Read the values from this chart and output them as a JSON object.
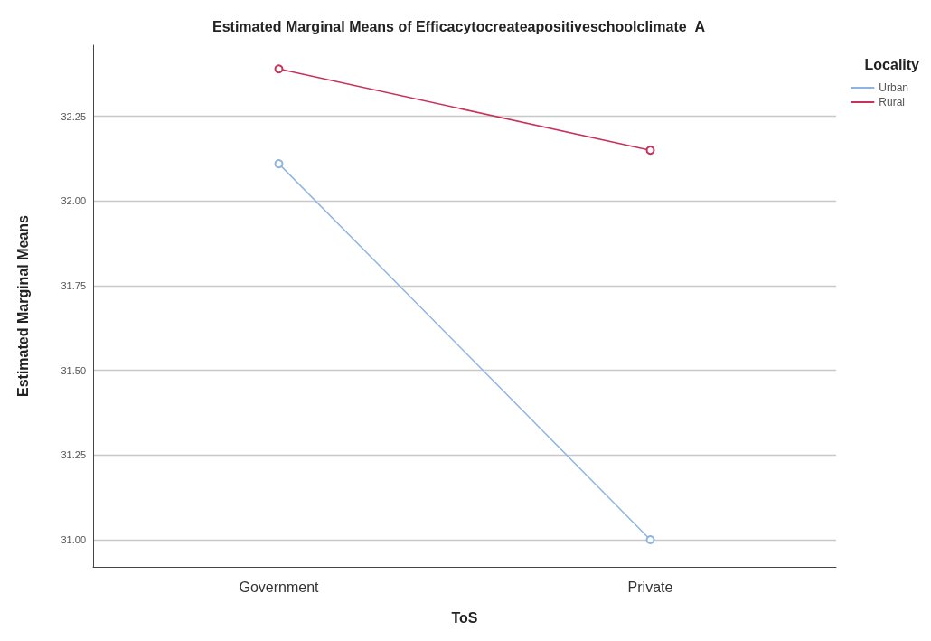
{
  "chart_data": {
    "type": "line",
    "title": "Estimated Marginal Means of Efficacytocreateapositiveschoolclimate_A",
    "xlabel": "ToS",
    "ylabel": "Estimated Marginal Means",
    "legend_title": "Locality",
    "categories": [
      "Government",
      "Private"
    ],
    "series": [
      {
        "name": "Urban",
        "color": "#8fb4e3",
        "values": [
          32.11,
          31.0
        ]
      },
      {
        "name": "Rural",
        "color": "#c8325a",
        "values": [
          32.39,
          32.15
        ]
      }
    ],
    "ylim": [
      30.92,
      32.46
    ],
    "yticks": [
      {
        "value": 31.0,
        "label": "31.00"
      },
      {
        "value": 31.25,
        "label": "31.25"
      },
      {
        "value": 31.5,
        "label": "31.50"
      },
      {
        "value": 31.75,
        "label": "31.75"
      },
      {
        "value": 32.0,
        "label": "32.00"
      },
      {
        "value": 32.25,
        "label": "32.25"
      }
    ],
    "grid": "y",
    "legend": "top right",
    "marker": "circle",
    "line_style": "solid"
  }
}
